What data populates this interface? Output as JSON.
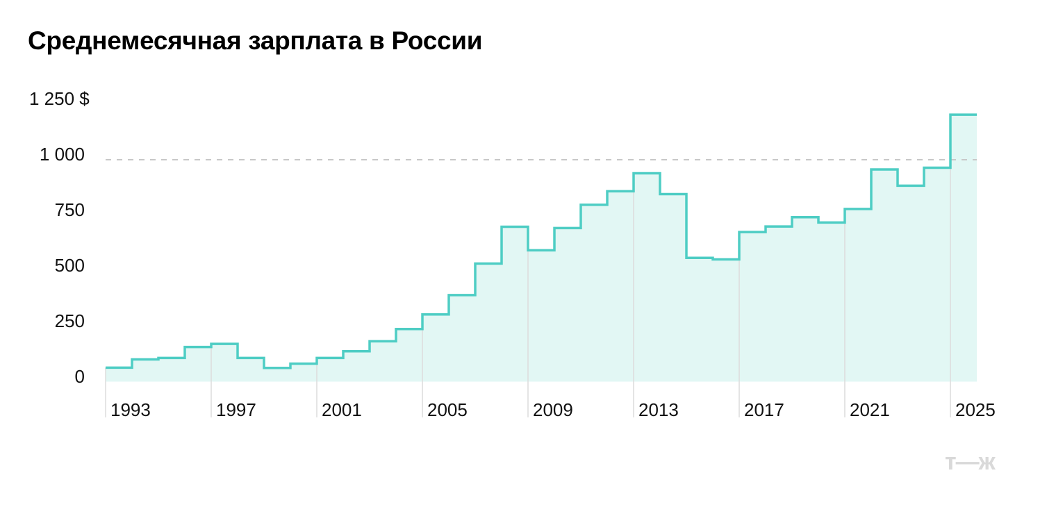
{
  "title": "Среднемесячная зарплата в России",
  "logo": "т—ж",
  "y_axis": {
    "labels": [
      {
        "value": 1250,
        "text": "1 250 $"
      },
      {
        "value": 1000,
        "text": "1 000"
      },
      {
        "value": 750,
        "text": "750"
      },
      {
        "value": 500,
        "text": "500"
      },
      {
        "value": 250,
        "text": "250"
      },
      {
        "value": 0,
        "text": "0"
      }
    ]
  },
  "x_axis": {
    "labels": [
      "1993",
      "1997",
      "2001",
      "2005",
      "2009",
      "2013",
      "2017",
      "2021",
      "2025"
    ]
  },
  "colors": {
    "line": "#4ecdc4",
    "fill": "#e2f7f4",
    "reference_line": "#c8c8c8",
    "gridline": "#dcdcdc",
    "logo": "#d9d9d9"
  },
  "chart_data": {
    "type": "step-area",
    "title": "Среднемесячная зарплата в России",
    "xlabel": "",
    "ylabel": "$",
    "ylim": [
      0,
      1250
    ],
    "yticks": [
      0,
      250,
      500,
      750,
      1000,
      1250
    ],
    "xticks": [
      1993,
      1997,
      2001,
      2005,
      2009,
      2013,
      2017,
      2021,
      2025
    ],
    "reference_line": {
      "value": 1000,
      "style": "dashed"
    },
    "grid": {
      "vertical": true,
      "horizontal": false
    },
    "legend": null,
    "x": [
      1993,
      1994,
      1995,
      1996,
      1997,
      1998,
      1999,
      2000,
      2001,
      2002,
      2003,
      2004,
      2005,
      2006,
      2007,
      2008,
      2009,
      2010,
      2011,
      2012,
      2013,
      2014,
      2015,
      2016,
      2017,
      2018,
      2019,
      2020,
      2021,
      2022,
      2023,
      2024,
      2025
    ],
    "values": [
      63,
      100,
      107,
      156,
      170,
      107,
      62,
      81,
      107,
      137,
      182,
      237,
      303,
      390,
      532,
      698,
      592,
      692,
      797,
      858,
      939,
      845,
      558,
      551,
      674,
      699,
      741,
      717,
      778,
      956,
      883,
      964,
      1203
    ]
  }
}
